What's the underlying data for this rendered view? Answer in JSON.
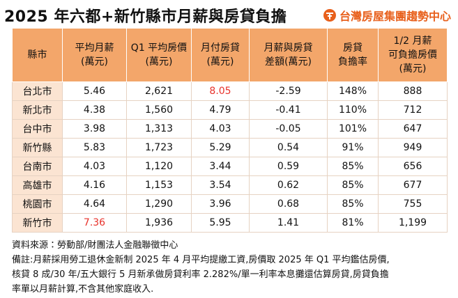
{
  "header": {
    "title": "2025 年六都+新竹縣市月薪與房貸負擔",
    "logo": "台灣房屋集團趨勢中心"
  },
  "table": {
    "columns": [
      [
        "縣市"
      ],
      [
        "平均月薪",
        "(萬元)"
      ],
      [
        "Q1 平均房價",
        "(萬元)"
      ],
      [
        "月付房貸",
        "(萬元)"
      ],
      [
        "月薪與房貸",
        "差額(萬元)"
      ],
      [
        "房貸",
        "負擔率"
      ],
      [
        "1/2 月薪",
        "可負擔房價",
        "(萬元)"
      ]
    ],
    "rows": [
      [
        "台北市",
        "5.46",
        "2,621",
        "8.05",
        "-2.59",
        "148%",
        "888"
      ],
      [
        "新北市",
        "4.38",
        "1,560",
        "4.79",
        "-0.41",
        "110%",
        "712"
      ],
      [
        "台中市",
        "3.98",
        "1,313",
        "4.03",
        "-0.05",
        "101%",
        "647"
      ],
      [
        "新竹縣",
        "5.83",
        "1,723",
        "5.29",
        "0.54",
        "91%",
        "949"
      ],
      [
        "台南市",
        "4.03",
        "1,120",
        "3.44",
        "0.59",
        "85%",
        "656"
      ],
      [
        "高雄市",
        "4.16",
        "1,153",
        "3.54",
        "0.62",
        "85%",
        "677"
      ],
      [
        "桃園市",
        "4.64",
        "1,290",
        "3.96",
        "0.68",
        "85%",
        "755"
      ],
      [
        "新竹市",
        "7.36",
        "1,936",
        "5.95",
        "1.41",
        "81%",
        "1,199"
      ]
    ]
  },
  "footer": {
    "source": "資料來源：勞動部/財團法人金融聯徵中心",
    "note": [
      "備註:月薪採用勞工退休金新制 2025 年 4 月平均提繳工資,房價取 2025 年 Q1 平均鑑估房價,",
      "核貸 8 成/30 年/五大銀行 5 月新承做房貸利率 2.282%/單一利率本息攤還估算房貸,房貸負擔",
      "率單以月薪計算,不含其他家庭收入."
    ]
  }
}
